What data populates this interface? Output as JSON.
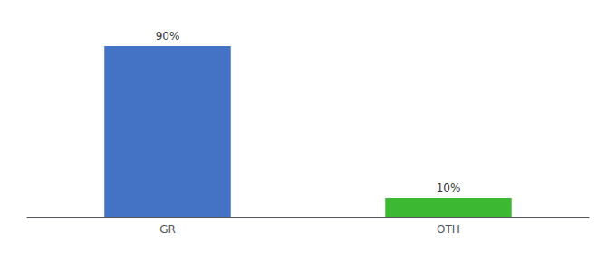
{
  "chart_data": {
    "type": "bar",
    "categories": [
      "GR",
      "OTH"
    ],
    "values": [
      90,
      10
    ],
    "colors": [
      "#4472c4",
      "#3cb832"
    ],
    "value_labels": [
      "90%",
      "10%"
    ],
    "data_labels": true,
    "ylim": [
      0,
      100
    ],
    "grid": false,
    "tick_labels": "x"
  }
}
